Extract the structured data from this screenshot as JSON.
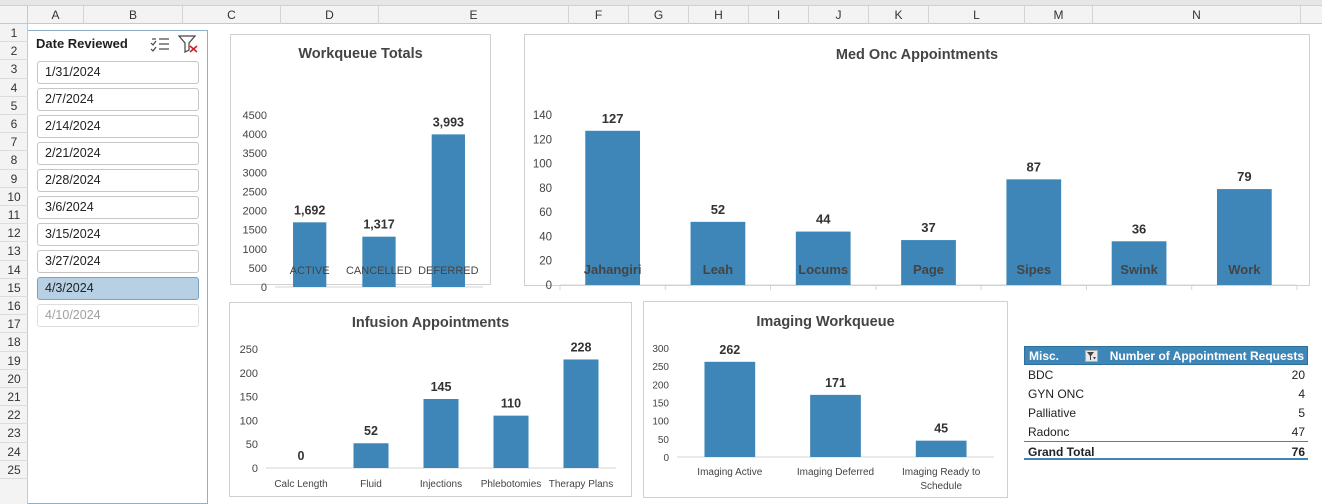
{
  "grid": {
    "columns": [
      "A",
      "B",
      "C",
      "D",
      "E",
      "F",
      "G",
      "H",
      "I",
      "J",
      "K",
      "L",
      "M",
      "N"
    ],
    "rows": [
      "1",
      "2",
      "3",
      "4",
      "5",
      "6",
      "7",
      "8",
      "9",
      "10",
      "11",
      "12",
      "13",
      "14",
      "15",
      "16",
      "17",
      "18",
      "19",
      "20",
      "21",
      "22",
      "23",
      "24",
      "25"
    ]
  },
  "slicer": {
    "title": "Date Reviewed",
    "multiselect_icon": "multi-select-icon",
    "clear_icon": "clear-filter-icon",
    "items": [
      {
        "label": "1/31/2024",
        "state": "normal"
      },
      {
        "label": "2/7/2024",
        "state": "normal"
      },
      {
        "label": "2/14/2024",
        "state": "normal"
      },
      {
        "label": "2/21/2024",
        "state": "normal"
      },
      {
        "label": "2/28/2024",
        "state": "normal"
      },
      {
        "label": "3/6/2024",
        "state": "normal"
      },
      {
        "label": "3/15/2024",
        "state": "normal"
      },
      {
        "label": "3/27/2024",
        "state": "normal"
      },
      {
        "label": "4/3/2024",
        "state": "selected"
      },
      {
        "label": "4/10/2024",
        "state": "dim"
      }
    ]
  },
  "colors": {
    "bar": "#3e86b7",
    "selected_item": "#b7d0e3",
    "table_header": "#3e86b7"
  },
  "chart_data": [
    {
      "id": "workqueue",
      "type": "bar",
      "title": "Workqueue Totals",
      "categories": [
        "ACTIVE",
        "CANCELLED",
        "DEFERRED"
      ],
      "values": [
        1692,
        1317,
        3993
      ],
      "data_labels": [
        "1,692",
        "1,317",
        "3,993"
      ],
      "ylim": [
        0,
        4500
      ],
      "yticks": [
        0,
        500,
        1000,
        1500,
        2000,
        2500,
        3000,
        3500,
        4000,
        4500
      ],
      "grid": false
    },
    {
      "id": "medonc",
      "type": "bar",
      "title": "Med Onc Appointments",
      "categories": [
        "Jahangiri",
        "Leah",
        "Locums",
        "Page",
        "Sipes",
        "Swink",
        "Work"
      ],
      "values": [
        127,
        52,
        44,
        37,
        87,
        36,
        79
      ],
      "data_labels": [
        "127",
        "52",
        "44",
        "37",
        "87",
        "36",
        "79"
      ],
      "ylim": [
        0,
        140
      ],
      "yticks": [
        0,
        20,
        40,
        60,
        80,
        100,
        120,
        140
      ],
      "grid": false
    },
    {
      "id": "infusion",
      "type": "bar",
      "title": "Infusion Appointments",
      "categories": [
        "Calc Length",
        "Fluid",
        "Injections",
        "Phlebotomies",
        "Therapy Plans"
      ],
      "values": [
        0,
        52,
        145,
        110,
        228
      ],
      "data_labels": [
        "0",
        "52",
        "145",
        "110",
        "228"
      ],
      "ylim": [
        0,
        250
      ],
      "yticks": [
        0,
        50,
        100,
        150,
        200,
        250
      ],
      "grid": false
    },
    {
      "id": "imaging",
      "type": "bar",
      "title": "Imaging Workqueue",
      "categories": [
        "Imaging Active",
        "Imaging Deferred",
        "Imaging Ready to Schedule"
      ],
      "values": [
        262,
        171,
        45
      ],
      "data_labels": [
        "262",
        "171",
        "45"
      ],
      "ylim": [
        0,
        300
      ],
      "yticks": [
        0,
        50,
        100,
        150,
        200,
        250,
        300
      ],
      "grid": false
    }
  ],
  "pivot": {
    "header_label": "Misc.",
    "header_value": "Number of Appointment Requests",
    "filter_icon": "filter-dropdown-icon",
    "rows": [
      {
        "label": "BDC",
        "value": "20"
      },
      {
        "label": "GYN ONC",
        "value": "4"
      },
      {
        "label": "Palliative",
        "value": "5"
      },
      {
        "label": "Radonc",
        "value": "47"
      }
    ],
    "total_label": "Grand Total",
    "total_value": "76"
  }
}
